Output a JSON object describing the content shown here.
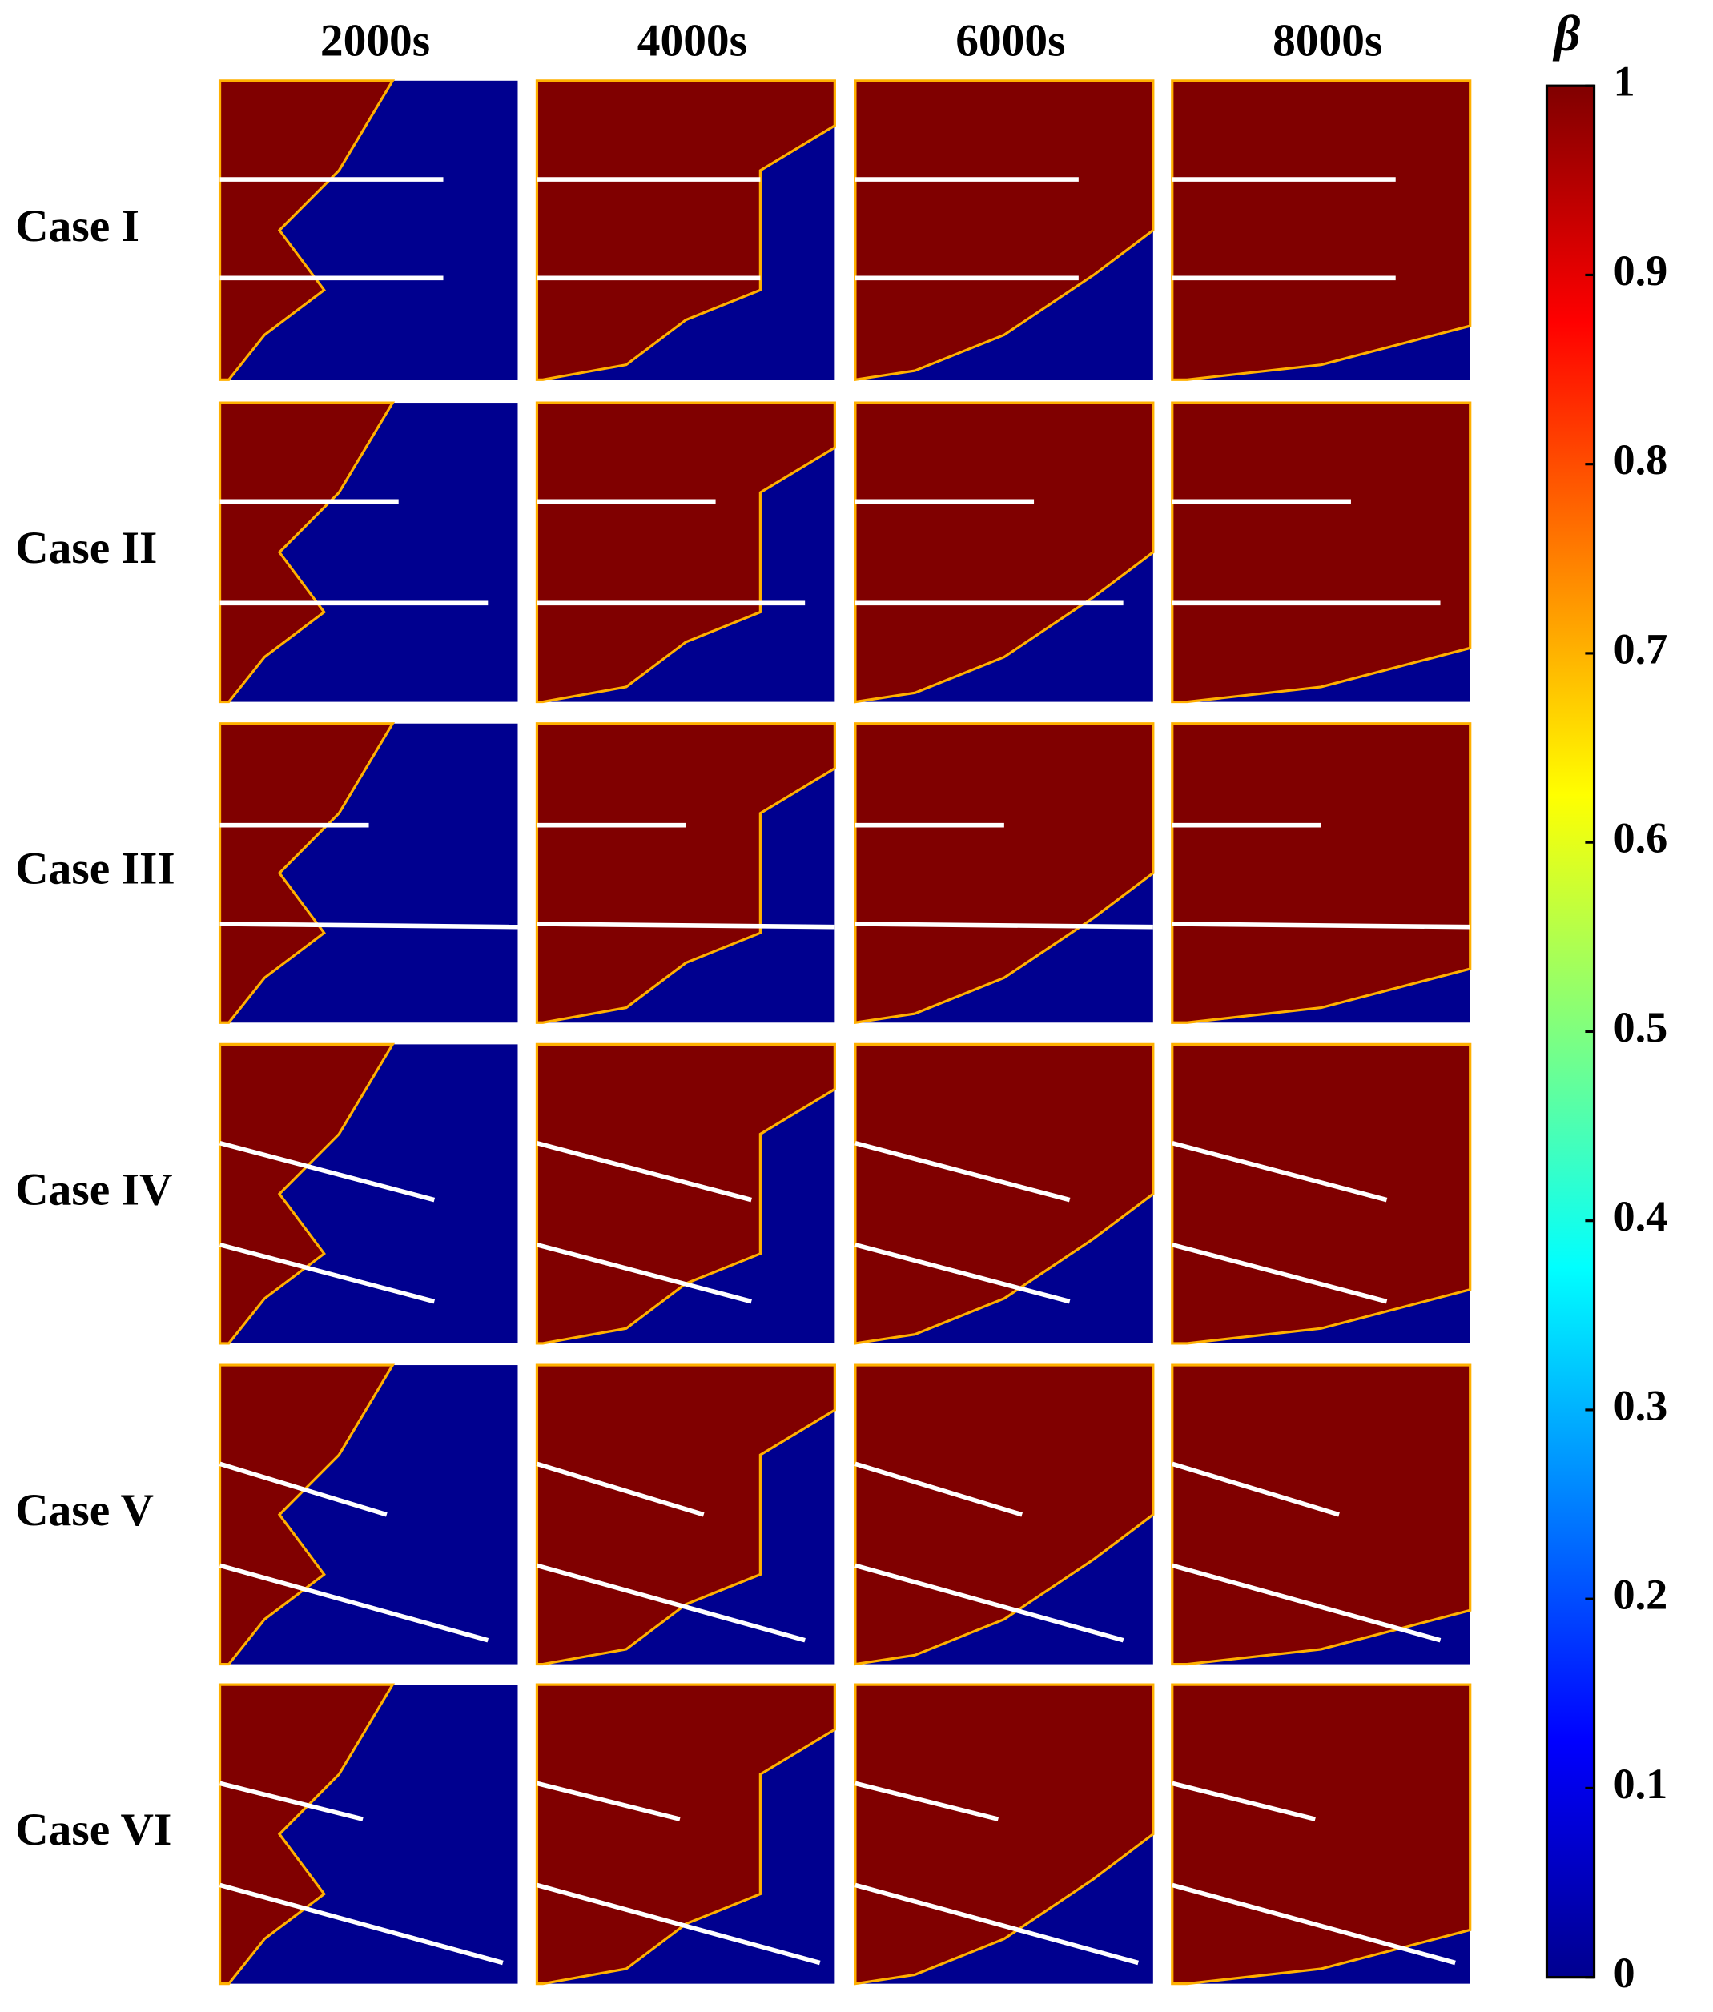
{
  "columns": [
    "2000s",
    "4000s",
    "6000s",
    "8000s"
  ],
  "rows": [
    "Case I",
    "Case II",
    "Case III",
    "Case IV",
    "Case V",
    "Case VI"
  ],
  "colorbar": {
    "label": "β",
    "lim": [
      0,
      1
    ],
    "ticks": [
      0,
      0.1,
      0.2,
      0.3,
      0.4,
      0.5,
      0.6,
      0.7,
      0.8,
      0.9,
      1
    ]
  }
}
